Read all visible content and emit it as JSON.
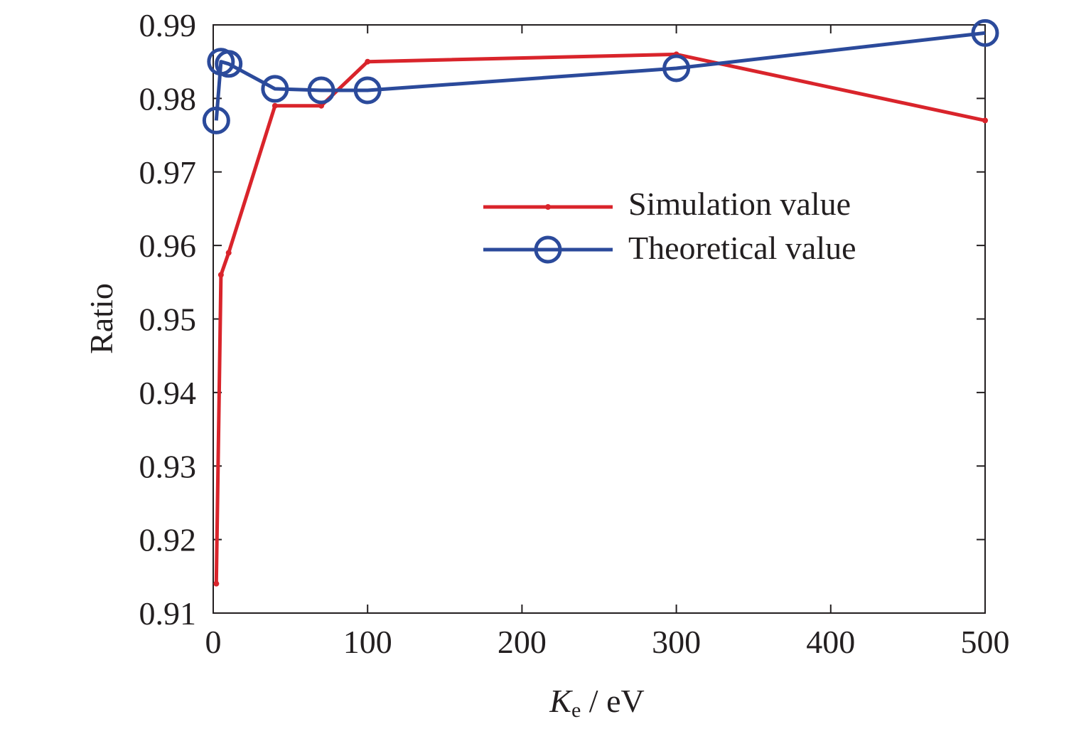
{
  "chart_data": {
    "type": "line",
    "title": "",
    "xlabel": {
      "main": "K",
      "subscript": "e",
      "rest": " / eV"
    },
    "ylabel": "Ratio",
    "xlim": [
      0,
      500
    ],
    "ylim": [
      0.91,
      0.99
    ],
    "xticks": [
      0,
      100,
      200,
      300,
      400,
      500
    ],
    "xtick_labels": [
      "0",
      "100",
      "200",
      "300",
      "400",
      "500"
    ],
    "yticks": [
      0.91,
      0.92,
      0.93,
      0.94,
      0.95,
      0.96,
      0.97,
      0.98,
      0.99
    ],
    "ytick_labels": [
      "0.91",
      "0.92",
      "0.93",
      "0.94",
      "0.95",
      "0.96",
      "0.97",
      "0.98",
      "0.99"
    ],
    "grid": false,
    "legend_position": "upper-right",
    "series": [
      {
        "name": "Simulation value",
        "color": "#d9242b",
        "marker": "dot",
        "x": [
          2,
          5,
          10,
          40,
          70,
          100,
          300,
          500
        ],
        "y": [
          0.914,
          0.956,
          0.959,
          0.979,
          0.979,
          0.985,
          0.986,
          0.977
        ]
      },
      {
        "name": "Theoretical value",
        "color": "#2b4a9b",
        "marker": "circle",
        "x": [
          2,
          5,
          10,
          40,
          70,
          100,
          300,
          500
        ],
        "y": [
          0.977,
          0.985,
          0.9847,
          0.9813,
          0.9811,
          0.9811,
          0.9841,
          0.9889
        ]
      }
    ]
  }
}
